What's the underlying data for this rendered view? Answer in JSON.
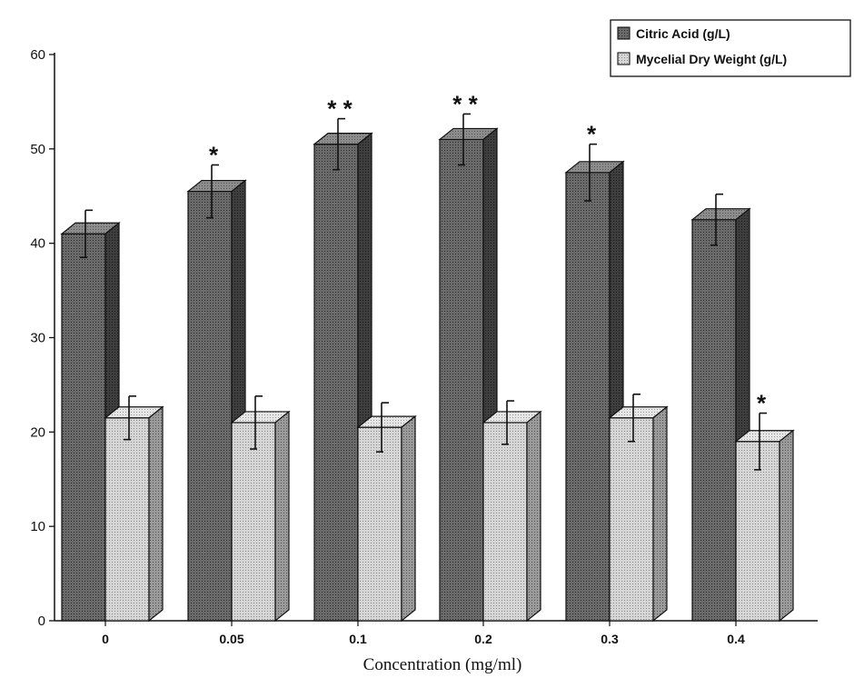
{
  "chart_data": {
    "type": "bar",
    "style": "3d-grouped",
    "categories": [
      "0",
      "0.05",
      "0.1",
      "0.2",
      "0.3",
      "0.4"
    ],
    "xlabel": "Concentration (mg/ml)",
    "ylabel": "",
    "ylim": [
      0,
      60
    ],
    "yticks": [
      0,
      10,
      20,
      30,
      40,
      50,
      60
    ],
    "grid": false,
    "legend_position": "top-right",
    "series": [
      {
        "name": "Citric Acid (g/L)",
        "values": [
          41,
          45.5,
          50.5,
          51,
          47.5,
          42.5
        ],
        "errors": [
          2.5,
          2.8,
          2.7,
          2.7,
          3.0,
          2.7
        ],
        "significance": [
          "",
          "*",
          "**",
          "**",
          "*",
          ""
        ],
        "color": "#5a5a5a"
      },
      {
        "name": "Mycelial Dry Weight (g/L)",
        "values": [
          21.5,
          21,
          20.5,
          21,
          21.5,
          19
        ],
        "errors": [
          2.3,
          2.8,
          2.6,
          2.3,
          2.5,
          3.0
        ],
        "significance": [
          "",
          "",
          "",
          "",
          "",
          "*"
        ],
        "color": "#cfcfcf"
      }
    ]
  }
}
